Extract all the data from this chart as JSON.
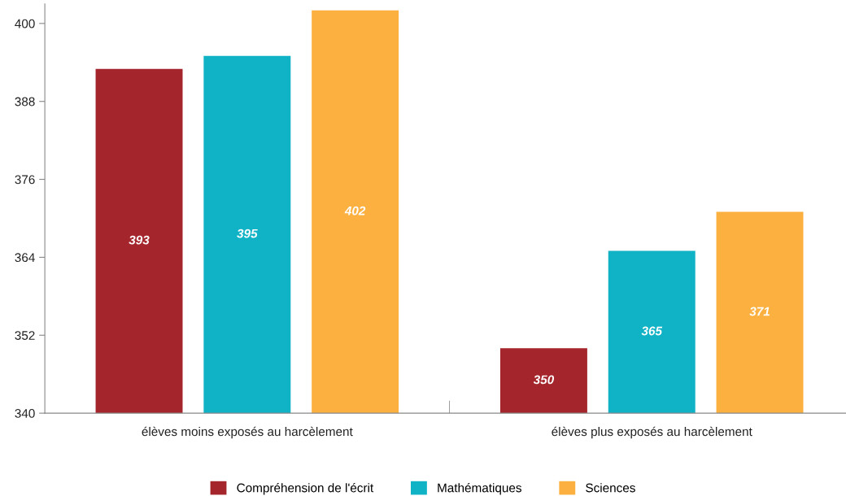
{
  "chart_data": {
    "type": "bar",
    "categories": [
      "élèves moins exposés au harcèlement",
      "élèves plus exposés au harcèlement"
    ],
    "series": [
      {
        "name": "Compréhension de l'écrit",
        "color": "#a4262c",
        "values": [
          393,
          350
        ]
      },
      {
        "name": "Mathématiques",
        "color": "#10b2c6",
        "values": [
          395,
          365
        ]
      },
      {
        "name": "Sciences",
        "color": "#fbb040",
        "values": [
          402,
          371
        ]
      }
    ],
    "ylim": [
      340,
      403
    ],
    "yticks": [
      340,
      352,
      364,
      376,
      388,
      400
    ],
    "data_labels": true,
    "grid": false,
    "legend": "bottom"
  }
}
